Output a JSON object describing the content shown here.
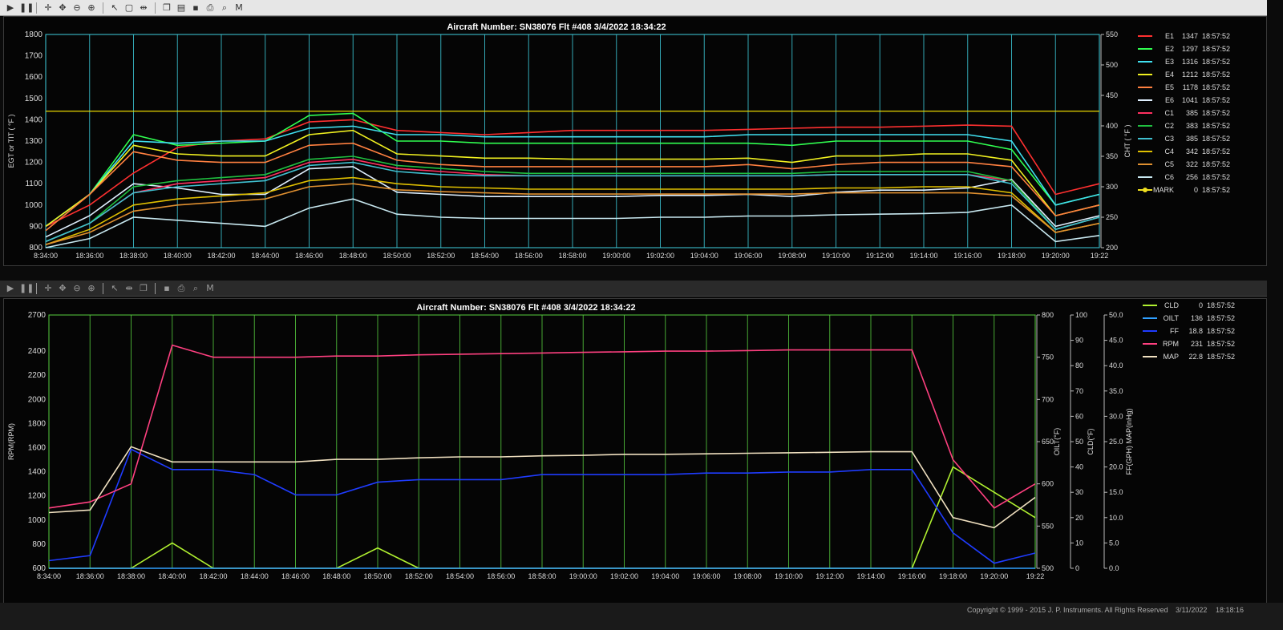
{
  "toolbar_top": {
    "buttons": [
      {
        "name": "play-icon",
        "glyph": "▶"
      },
      {
        "name": "pause-icon",
        "glyph": "❚❚"
      },
      {
        "name": "crosshair-icon",
        "glyph": "✛"
      },
      {
        "name": "pan-icon",
        "glyph": "✥"
      },
      {
        "name": "zoom-out-icon",
        "glyph": "⊖"
      },
      {
        "name": "zoom-in-icon",
        "glyph": "⊕"
      },
      {
        "name": "cursor-icon",
        "glyph": "↖"
      },
      {
        "name": "select-box-icon",
        "glyph": "▢"
      },
      {
        "name": "fit-icon",
        "glyph": "⇹"
      },
      {
        "name": "copy-icon",
        "glyph": "❐"
      },
      {
        "name": "layers-icon",
        "glyph": "▤"
      },
      {
        "name": "save-icon",
        "glyph": "▪"
      },
      {
        "name": "print-icon",
        "glyph": "⎙"
      },
      {
        "name": "preview-icon",
        "glyph": "⌕"
      },
      {
        "name": "marker-icon",
        "glyph": "M"
      }
    ]
  },
  "toolbar_bottom": {
    "buttons": [
      {
        "name": "play-icon",
        "glyph": "▶"
      },
      {
        "name": "pause-icon",
        "glyph": "❚❚"
      },
      {
        "name": "crosshair-icon",
        "glyph": "✛"
      },
      {
        "name": "pan-icon",
        "glyph": "✥"
      },
      {
        "name": "zoom-out-icon",
        "glyph": "⊖"
      },
      {
        "name": "zoom-in-icon",
        "glyph": "⊕"
      },
      {
        "name": "cursor-icon",
        "glyph": "↖"
      },
      {
        "name": "fit-icon",
        "glyph": "⇹"
      },
      {
        "name": "copy-icon",
        "glyph": "❐"
      },
      {
        "name": "save-icon",
        "glyph": "▪"
      },
      {
        "name": "print-icon",
        "glyph": "⎙"
      },
      {
        "name": "preview-icon",
        "glyph": "⌕"
      },
      {
        "name": "marker-icon",
        "glyph": "M"
      }
    ]
  },
  "footer": {
    "copyright": "Copyright © 1999 - 2015 J. P. Instruments. All Rights Reserved",
    "date": "3/11/2022",
    "time": "18:18:16"
  },
  "chart_data": [
    {
      "type": "line",
      "title": "Aircraft Number: SN38076 Flt #408 3/4/2022 18:34:22",
      "ylabel": "EGT or TIT ( °F )",
      "y2label": "CHT ( °F )",
      "xlabel": "",
      "x_ticks": [
        "8:34:00",
        "18:36:00",
        "18:38:00",
        "18:40:00",
        "18:42:00",
        "18:44:00",
        "18:46:00",
        "18:48:00",
        "18:50:00",
        "18:52:00",
        "18:54:00",
        "18:56:00",
        "18:58:00",
        "19:00:00",
        "19:02:00",
        "19:04:00",
        "19:06:00",
        "19:08:00",
        "19:10:00",
        "19:12:00",
        "19:14:00",
        "19:16:00",
        "19:18:00",
        "19:20:00",
        "19:22"
      ],
      "ylim": [
        800,
        1800
      ],
      "yticks": [
        800,
        900,
        1000,
        1100,
        1200,
        1300,
        1400,
        1500,
        1600,
        1700,
        1800
      ],
      "y2lim": [
        200,
        550
      ],
      "y2ticks": [
        200,
        250,
        300,
        350,
        400,
        450,
        500,
        550
      ],
      "grid": true,
      "legend_position": "right",
      "reference_line_y": 1440,
      "series": [
        {
          "name": "E1",
          "value": "1347",
          "time": "18:57:52",
          "color": "#ff3030",
          "axis": "left",
          "y": [
            900,
            1000,
            1150,
            1270,
            1300,
            1310,
            1390,
            1400,
            1350,
            1340,
            1330,
            1340,
            1350,
            1350,
            1350,
            1350,
            1355,
            1360,
            1365,
            1365,
            1370,
            1375,
            1370,
            1050,
            1100
          ]
        },
        {
          "name": "E2",
          "value": "1297",
          "time": "18:57:52",
          "color": "#30ff50",
          "axis": "left",
          "y": [
            900,
            1050,
            1330,
            1280,
            1290,
            1300,
            1420,
            1430,
            1300,
            1300,
            1290,
            1290,
            1290,
            1290,
            1290,
            1290,
            1290,
            1280,
            1300,
            1300,
            1300,
            1300,
            1260,
            1000,
            1050
          ]
        },
        {
          "name": "E3",
          "value": "1316",
          "time": "18:57:52",
          "color": "#40e0f0",
          "axis": "left",
          "y": [
            900,
            1050,
            1300,
            1290,
            1300,
            1300,
            1360,
            1370,
            1330,
            1330,
            1320,
            1320,
            1320,
            1320,
            1320,
            1320,
            1330,
            1330,
            1330,
            1330,
            1330,
            1330,
            1300,
            1000,
            1050
          ]
        },
        {
          "name": "E4",
          "value": "1212",
          "time": "18:57:52",
          "color": "#f0f020",
          "axis": "left",
          "y": [
            900,
            1050,
            1280,
            1240,
            1230,
            1230,
            1330,
            1350,
            1240,
            1230,
            1220,
            1220,
            1215,
            1215,
            1215,
            1215,
            1220,
            1200,
            1230,
            1230,
            1240,
            1240,
            1210,
            950,
            1000
          ]
        },
        {
          "name": "E5",
          "value": "1178",
          "time": "18:57:52",
          "color": "#ff8040",
          "axis": "left",
          "y": [
            880,
            1050,
            1250,
            1210,
            1200,
            1200,
            1280,
            1290,
            1210,
            1190,
            1180,
            1180,
            1180,
            1180,
            1180,
            1180,
            1190,
            1170,
            1190,
            1200,
            1200,
            1200,
            1180,
            950,
            1000
          ]
        },
        {
          "name": "E6",
          "value": "1041",
          "time": "18:57:52",
          "color": "#e0f0ff",
          "axis": "left",
          "y": [
            850,
            950,
            1100,
            1080,
            1050,
            1050,
            1170,
            1180,
            1060,
            1050,
            1040,
            1040,
            1040,
            1040,
            1045,
            1045,
            1050,
            1040,
            1060,
            1070,
            1070,
            1080,
            1120,
            900,
            950
          ]
        },
        {
          "name": "C1",
          "value": "385",
          "time": "18:57:52",
          "color": "#ff3060",
          "axis": "right",
          "y": [
            210,
            240,
            290,
            305,
            310,
            315,
            340,
            345,
            330,
            325,
            320,
            318,
            318,
            318,
            318,
            318,
            318,
            318,
            320,
            320,
            320,
            320,
            310,
            230,
            250
          ]
        },
        {
          "name": "C2",
          "value": "383",
          "time": "18:57:52",
          "color": "#20c040",
          "axis": "right",
          "y": [
            210,
            240,
            300,
            310,
            315,
            320,
            345,
            350,
            335,
            330,
            325,
            322,
            322,
            322,
            322,
            322,
            322,
            322,
            325,
            325,
            325,
            325,
            310,
            230,
            250
          ]
        },
        {
          "name": "C3",
          "value": "385",
          "time": "18:57:52",
          "color": "#40c0d0",
          "axis": "right",
          "y": [
            210,
            240,
            290,
            300,
            305,
            310,
            335,
            340,
            325,
            320,
            318,
            318,
            318,
            318,
            318,
            318,
            318,
            318,
            320,
            320,
            320,
            320,
            305,
            230,
            250
          ]
        },
        {
          "name": "C4",
          "value": "342",
          "time": "18:57:52",
          "color": "#e0c000",
          "axis": "right",
          "y": [
            205,
            230,
            270,
            280,
            285,
            290,
            310,
            315,
            305,
            300,
            298,
            296,
            296,
            296,
            296,
            296,
            296,
            296,
            298,
            298,
            300,
            300,
            290,
            225,
            240
          ]
        },
        {
          "name": "C5",
          "value": "322",
          "time": "18:57:52",
          "color": "#e09030",
          "axis": "right",
          "y": [
            205,
            225,
            260,
            270,
            275,
            280,
            300,
            305,
            295,
            292,
            290,
            288,
            288,
            288,
            288,
            288,
            288,
            288,
            290,
            290,
            290,
            290,
            285,
            225,
            240
          ]
        },
        {
          "name": "C6",
          "value": "256",
          "time": "18:57:52",
          "color": "#c8e8f0",
          "axis": "right",
          "y": [
            200,
            215,
            250,
            245,
            240,
            235,
            265,
            280,
            255,
            250,
            248,
            248,
            248,
            248,
            250,
            250,
            252,
            252,
            254,
            255,
            256,
            258,
            270,
            210,
            220
          ]
        },
        {
          "name": "MARK",
          "value": "0",
          "time": "18:57:52",
          "color": "#f0e020",
          "axis": "none",
          "y": []
        }
      ]
    },
    {
      "type": "line",
      "title": "Aircraft Number: SN38076 Flt #408 3/4/2022 18:34:22",
      "ylabel": "RPM(RPM)",
      "y2label": "OILT(°F)",
      "y3label": "CLD(°F)",
      "y4label": "FF(GPH) MAP(inHg)",
      "xlabel": "",
      "x_ticks": [
        "8:34:00",
        "18:36:00",
        "18:38:00",
        "18:40:00",
        "18:42:00",
        "18:44:00",
        "18:46:00",
        "18:48:00",
        "18:50:00",
        "18:52:00",
        "18:54:00",
        "18:56:00",
        "18:58:00",
        "19:00:00",
        "19:02:00",
        "19:04:00",
        "19:06:00",
        "19:08:00",
        "19:10:00",
        "19:12:00",
        "19:14:00",
        "19:16:00",
        "19:18:00",
        "19:20:00",
        "19:22"
      ],
      "ylim": [
        600,
        2700
      ],
      "yticks": [
        600,
        800,
        1000,
        1200,
        1400,
        1600,
        1800,
        2000,
        2200,
        2400,
        2700
      ],
      "y2lim": [
        500,
        800
      ],
      "y2ticks": [
        500,
        550,
        600,
        650,
        700,
        750,
        800
      ],
      "y3lim": [
        0,
        100
      ],
      "y3ticks": [
        0,
        10,
        20,
        30,
        40,
        50,
        60,
        70,
        80,
        90,
        100
      ],
      "y4lim": [
        0,
        50
      ],
      "y4ticks": [
        "0.0",
        "5.0",
        "10.0",
        "15.0",
        "20.0",
        "25.0",
        "30.0",
        "35.0",
        "40.0",
        "45.0",
        "50.0"
      ],
      "grid": true,
      "legend_position": "right",
      "series": [
        {
          "name": "CLD",
          "value": "0",
          "time": "18:57:52",
          "color": "#b0f030",
          "axis": "cld",
          "y": [
            0,
            0,
            0,
            10,
            0,
            0,
            0,
            0,
            8,
            0,
            0,
            0,
            0,
            0,
            0,
            0,
            0,
            0,
            0,
            0,
            0,
            0,
            40,
            30,
            20
          ]
        },
        {
          "name": "OILT",
          "value": "136",
          "time": "18:57:52",
          "color": "#30a0ff",
          "axis": "oilt",
          "y": [
            500,
            500,
            500,
            500,
            500,
            500,
            500,
            500,
            500,
            500,
            500,
            500,
            500,
            500,
            500,
            500,
            500,
            500,
            500,
            500,
            500,
            500,
            500,
            500,
            500
          ]
        },
        {
          "name": "FF",
          "value": "18.8",
          "time": "18:57:52",
          "color": "#1f3cff",
          "axis": "ff",
          "y": [
            1.5,
            2.5,
            23.5,
            19.5,
            19.5,
            18.5,
            14.5,
            14.5,
            17,
            17.5,
            17.5,
            17.5,
            18.5,
            18.5,
            18.5,
            18.5,
            18.8,
            18.8,
            19,
            19,
            19.5,
            19.5,
            7,
            1,
            3
          ]
        },
        {
          "name": "RPM",
          "value": "231",
          "time": "18:57:52",
          "color": "#ff4080",
          "axis": "left",
          "y": [
            1100,
            1150,
            1300,
            2450,
            2350,
            2350,
            2350,
            2360,
            2360,
            2370,
            2375,
            2380,
            2385,
            2390,
            2395,
            2400,
            2400,
            2405,
            2410,
            2410,
            2410,
            2410,
            1500,
            1100,
            1300
          ]
        },
        {
          "name": "MAP",
          "value": "22.8",
          "time": "18:57:52",
          "color": "#f0e0c0",
          "axis": "ff",
          "y": [
            11,
            11.5,
            24,
            21,
            21,
            21,
            21,
            21.5,
            21.5,
            21.8,
            22,
            22,
            22.2,
            22.3,
            22.5,
            22.5,
            22.6,
            22.7,
            22.8,
            22.9,
            23,
            23,
            10,
            8,
            14
          ]
        }
      ]
    }
  ]
}
